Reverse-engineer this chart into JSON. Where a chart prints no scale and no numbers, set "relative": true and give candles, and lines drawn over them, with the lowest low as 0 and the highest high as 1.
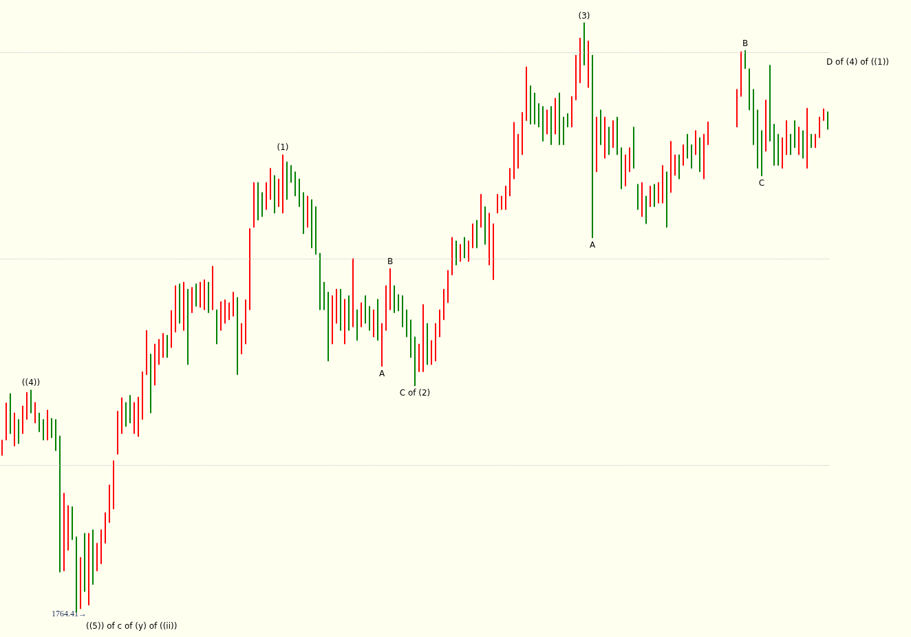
{
  "chart_data": {
    "type": "candlestick",
    "relative": true,
    "grid": false,
    "categories": [
      null,
      null,
      null,
      null,
      null,
      null,
      null,
      null,
      null,
      null,
      null,
      null,
      null,
      null,
      null,
      null,
      null,
      null,
      null,
      null,
      null,
      null,
      null,
      null,
      null,
      null,
      null,
      null,
      null,
      null,
      null,
      null,
      null,
      null,
      null,
      null,
      null,
      null,
      null,
      null,
      null,
      null,
      null,
      null,
      null,
      null,
      null,
      null,
      null,
      null,
      null,
      null,
      null,
      null,
      null,
      null,
      null,
      null,
      null,
      null,
      null,
      null,
      null,
      null,
      null,
      null,
      null,
      null,
      null,
      null,
      null,
      null,
      null,
      null,
      null,
      null,
      null,
      null,
      null,
      null,
      null,
      null,
      null,
      null,
      null,
      null,
      null,
      null,
      null,
      null,
      null,
      null,
      null,
      null,
      null,
      null,
      null,
      null,
      null,
      null,
      null,
      null,
      null,
      null,
      null,
      null,
      null,
      null,
      null,
      null,
      null,
      null,
      null,
      null,
      null,
      null,
      null,
      null,
      null,
      null,
      null,
      null,
      null,
      null,
      null,
      null,
      null,
      null,
      null,
      null,
      null,
      null,
      null,
      null,
      null,
      null,
      null,
      null,
      null,
      null,
      null,
      null,
      null,
      null,
      null,
      null,
      null,
      null,
      null,
      null,
      null,
      null,
      null,
      null,
      null,
      null,
      null,
      null,
      null,
      null,
      null,
      null,
      null,
      null,
      null,
      null,
      null,
      null,
      null,
      null,
      null,
      null,
      null,
      null,
      null,
      null,
      null,
      null,
      null,
      null,
      null,
      null,
      null,
      null,
      null,
      null,
      null,
      null,
      null,
      null,
      null,
      null,
      null,
      null,
      null,
      null,
      null,
      null,
      null,
      null,
      null
    ],
    "ohlc": [
      [
        0.266,
        0.292,
        0.266,
        0.292
      ],
      [
        0.292,
        0.355,
        0.292,
        0.355
      ],
      [
        0.371,
        0.371,
        0.303,
        0.303
      ],
      [
        0.282,
        0.338,
        0.282,
        0.338
      ],
      [
        0.327,
        0.327,
        0.286,
        0.286
      ],
      [
        0.303,
        0.35,
        0.303,
        0.35
      ],
      [
        0.327,
        0.373,
        0.327,
        0.373
      ],
      [
        0.377,
        0.377,
        0.338,
        0.338
      ],
      [
        0.321,
        0.356,
        0.321,
        0.356
      ],
      [
        0.338,
        0.338,
        0.306,
        0.306
      ],
      [
        0.327,
        0.327,
        0.292,
        0.292
      ],
      [
        0.292,
        0.343,
        0.292,
        0.343
      ],
      [
        0.329,
        0.329,
        0.296,
        0.296
      ],
      [
        0.327,
        0.327,
        0.274,
        0.274
      ],
      [
        0.299,
        0.299,
        0.068,
        0.068
      ],
      [
        0.07,
        0.202,
        0.07,
        0.202
      ],
      [
        0.105,
        0.181,
        0.105,
        0.181
      ],
      [
        0.179,
        0.179,
        0.123,
        0.123
      ],
      [
        0.128,
        0.128,
        0,
        0
      ],
      [
        0.006,
        0.093,
        0.006,
        0.093
      ],
      [
        0.134,
        0.134,
        0.035,
        0.035
      ],
      [
        0.012,
        0.134,
        0.012,
        0.134
      ],
      [
        0.14,
        0.14,
        0.047,
        0.047
      ],
      [
        0.07,
        0.117,
        0.07,
        0.117
      ],
      [
        0.082,
        0.14,
        0.082,
        0.14
      ],
      [
        0.117,
        0.169,
        0.117,
        0.169
      ],
      [
        0.152,
        0.216,
        0.152,
        0.216
      ],
      [
        0.175,
        0.257,
        0.175,
        0.257
      ],
      [
        0.268,
        0.341,
        0.268,
        0.341
      ],
      [
        0.303,
        0.364,
        0.303,
        0.364
      ],
      [
        0.356,
        0.356,
        0.315,
        0.315
      ],
      [
        0.368,
        0.368,
        0.321,
        0.321
      ],
      [
        0.303,
        0.356,
        0.303,
        0.356
      ],
      [
        0.298,
        0.365,
        0.298,
        0.365
      ],
      [
        0.327,
        0.408,
        0.327,
        0.408
      ],
      [
        0.403,
        0.478,
        0.403,
        0.478
      ],
      [
        0.438,
        0.438,
        0.338,
        0.338
      ],
      [
        0.385,
        0.455,
        0.385,
        0.455
      ],
      [
        0.42,
        0.463,
        0.42,
        0.463
      ],
      [
        0.432,
        0.473,
        0.432,
        0.473
      ],
      [
        0.47,
        0.47,
        0.432,
        0.432
      ],
      [
        0.449,
        0.512,
        0.449,
        0.512
      ],
      [
        0.475,
        0.554,
        0.475,
        0.554
      ],
      [
        0.557,
        0.557,
        0.49,
        0.49
      ],
      [
        0.478,
        0.56,
        0.478,
        0.56
      ],
      [
        0.548,
        0.548,
        0.42,
        0.42
      ],
      [
        0.508,
        0.551,
        0.508,
        0.551
      ],
      [
        0.557,
        0.557,
        0.519,
        0.519
      ],
      [
        0.517,
        0.56,
        0.517,
        0.56
      ],
      [
        0.513,
        0.564,
        0.513,
        0.564
      ],
      [
        0.56,
        0.56,
        0.508,
        0.508
      ],
      [
        0.513,
        0.587,
        0.513,
        0.587
      ],
      [
        0.513,
        0.513,
        0.455,
        0.455
      ],
      [
        0.478,
        0.527,
        0.478,
        0.527
      ],
      [
        0.49,
        0.53,
        0.49,
        0.53
      ],
      [
        0.496,
        0.525,
        0.496,
        0.525
      ],
      [
        0.502,
        0.543,
        0.502,
        0.543
      ],
      [
        0.534,
        0.534,
        0.403,
        0.403
      ],
      [
        0.438,
        0.49,
        0.438,
        0.49
      ],
      [
        0.455,
        0.53,
        0.455,
        0.53
      ],
      [
        0.513,
        0.651,
        0.513,
        0.651
      ],
      [
        0.653,
        0.729,
        0.653,
        0.729
      ],
      [
        0.729,
        0.729,
        0.665,
        0.665
      ],
      [
        0.712,
        0.712,
        0.671,
        0.671
      ],
      [
        0.683,
        0.729,
        0.683,
        0.729
      ],
      [
        0.7,
        0.753,
        0.7,
        0.753
      ],
      [
        0.741,
        0.741,
        0.677,
        0.677
      ],
      [
        0.688,
        0.735,
        0.688,
        0.735
      ],
      [
        0.677,
        0.776,
        0.677,
        0.776
      ],
      [
        0.764,
        0.764,
        0.7,
        0.7
      ],
      [
        0.758,
        0.758,
        0.729,
        0.729
      ],
      [
        0.747,
        0.747,
        0.706,
        0.706
      ],
      [
        0.735,
        0.735,
        0.688,
        0.688
      ],
      [
        0.712,
        0.712,
        0.642,
        0.642
      ],
      [
        0.653,
        0.706,
        0.653,
        0.706
      ],
      [
        0.7,
        0.7,
        0.618,
        0.618
      ],
      [
        0.688,
        0.688,
        0.607,
        0.607
      ],
      [
        0.609,
        0.609,
        0.513,
        0.513
      ],
      [
        0.56,
        0.56,
        0.513,
        0.513
      ],
      [
        0.543,
        0.543,
        0.426,
        0.426
      ],
      [
        0.455,
        0.537,
        0.455,
        0.537
      ],
      [
        0.49,
        0.548,
        0.49,
        0.548
      ],
      [
        0.548,
        0.548,
        0.478,
        0.478
      ],
      [
        0.455,
        0.531,
        0.455,
        0.531
      ],
      [
        0.537,
        0.537,
        0.478,
        0.478
      ],
      [
        0.484,
        0.6,
        0.484,
        0.6
      ],
      [
        0.513,
        0.513,
        0.461,
        0.461
      ],
      [
        0.484,
        0.525,
        0.484,
        0.525
      ],
      [
        0.537,
        0.537,
        0.49,
        0.49
      ],
      [
        0.519,
        0.519,
        0.478,
        0.478
      ],
      [
        0.467,
        0.513,
        0.467,
        0.513
      ],
      [
        0.531,
        0.531,
        0.461,
        0.461
      ],
      [
        0.417,
        0.49,
        0.417,
        0.49
      ],
      [
        0.478,
        0.554,
        0.478,
        0.554
      ],
      [
        0.513,
        0.583,
        0.513,
        0.583
      ],
      [
        0.554,
        0.554,
        0.508,
        0.508
      ],
      [
        0.539,
        0.539,
        0.511,
        0.511
      ],
      [
        0.537,
        0.537,
        0.484,
        0.484
      ],
      [
        0.513,
        0.513,
        0.467,
        0.467
      ],
      [
        0.496,
        0.496,
        0.432,
        0.432
      ],
      [
        0.467,
        0.467,
        0.384,
        0.384
      ],
      [
        0.408,
        0.455,
        0.408,
        0.455
      ],
      [
        0.408,
        0.522,
        0.408,
        0.522
      ],
      [
        0.49,
        0.49,
        0.42,
        0.42
      ],
      [
        0.42,
        0.461,
        0.42,
        0.461
      ],
      [
        0.426,
        0.49,
        0.426,
        0.49
      ],
      [
        0.467,
        0.513,
        0.467,
        0.513
      ],
      [
        0.496,
        0.548,
        0.496,
        0.548
      ],
      [
        0.525,
        0.58,
        0.525,
        0.58
      ],
      [
        0.572,
        0.636,
        0.572,
        0.636
      ],
      [
        0.63,
        0.63,
        0.589,
        0.589
      ],
      [
        0.595,
        0.624,
        0.595,
        0.624
      ],
      [
        0.636,
        0.636,
        0.601,
        0.601
      ],
      [
        0.595,
        0.63,
        0.595,
        0.63
      ],
      [
        0.618,
        0.659,
        0.618,
        0.659
      ],
      [
        0.665,
        0.665,
        0.618,
        0.618
      ],
      [
        0.653,
        0.709,
        0.653,
        0.709
      ],
      [
        0.688,
        0.688,
        0.624,
        0.624
      ],
      [
        0.589,
        0.677,
        0.589,
        0.677
      ],
      [
        0.564,
        0.659,
        0.564,
        0.659
      ],
      [
        0.677,
        0.709,
        0.677,
        0.709
      ],
      [
        0.683,
        0.706,
        0.683,
        0.706
      ],
      [
        0.683,
        0.723,
        0.683,
        0.723
      ],
      [
        0.706,
        0.753,
        0.706,
        0.753
      ],
      [
        0.735,
        0.831,
        0.735,
        0.831
      ],
      [
        0.753,
        0.811,
        0.753,
        0.811
      ],
      [
        0.776,
        0.848,
        0.776,
        0.848
      ],
      [
        0.834,
        0.925,
        0.834,
        0.925
      ],
      [
        0.893,
        0.893,
        0.828,
        0.828
      ],
      [
        0.881,
        0.881,
        0.828,
        0.828
      ],
      [
        0.863,
        0.863,
        0.823,
        0.823
      ],
      [
        0.858,
        0.858,
        0.799,
        0.799
      ],
      [
        0.811,
        0.852,
        0.811,
        0.852
      ],
      [
        0.858,
        0.858,
        0.793,
        0.793
      ],
      [
        0.811,
        0.872,
        0.811,
        0.872
      ],
      [
        0.881,
        0.881,
        0.793,
        0.793
      ],
      [
        0.84,
        0.84,
        0.793,
        0.793
      ],
      [
        0.846,
        0.846,
        0.823,
        0.823
      ],
      [
        0.823,
        0.875,
        0.823,
        0.875
      ],
      [
        0.869,
        0.945,
        0.869,
        0.945
      ],
      [
        0.898,
        0.974,
        0.898,
        0.974
      ],
      [
        1,
        1,
        0.928,
        0.928
      ],
      [
        0.89,
        0.969,
        0.89,
        0.969
      ],
      [
        0.945,
        0.945,
        0.635,
        0.635
      ],
      [
        0.747,
        0.84,
        0.747,
        0.84
      ],
      [
        0.852,
        0.852,
        0.793,
        0.793
      ],
      [
        0.77,
        0.84,
        0.77,
        0.84
      ],
      [
        0.823,
        0.823,
        0.776,
        0.776
      ],
      [
        0.788,
        0.834,
        0.788,
        0.834
      ],
      [
        0.84,
        0.84,
        0.776,
        0.776
      ],
      [
        0.788,
        0.788,
        0.718,
        0.718
      ],
      [
        0.723,
        0.776,
        0.723,
        0.776
      ],
      [
        0.747,
        0.788,
        0.747,
        0.788
      ],
      [
        0.823,
        0.823,
        0.753,
        0.753
      ],
      [
        0.726,
        0.726,
        0.683,
        0.683
      ],
      [
        0.671,
        0.729,
        0.671,
        0.729
      ],
      [
        0.706,
        0.706,
        0.659,
        0.659
      ],
      [
        0.688,
        0.723,
        0.688,
        0.723
      ],
      [
        0.726,
        0.726,
        0.688,
        0.688
      ],
      [
        0.694,
        0.729,
        0.694,
        0.729
      ],
      [
        0.694,
        0.758,
        0.694,
        0.758
      ],
      [
        0.747,
        0.747,
        0.653,
        0.653
      ],
      [
        0.712,
        0.799,
        0.712,
        0.799
      ],
      [
        0.741,
        0.776,
        0.741,
        0.776
      ],
      [
        0.776,
        0.776,
        0.735,
        0.735
      ],
      [
        0.758,
        0.793,
        0.758,
        0.793
      ],
      [
        0.811,
        0.811,
        0.77,
        0.77
      ],
      [
        0.793,
        0.793,
        0.753,
        0.753
      ],
      [
        0.776,
        0.817,
        0.776,
        0.817
      ],
      [
        0.805,
        0.805,
        0.747,
        0.747
      ],
      [
        0.735,
        0.811,
        0.735,
        0.811
      ],
      [
        0.793,
        0.832,
        0.793,
        0.832
      ],
      null,
      null,
      null,
      null,
      null,
      null,
      [
        0.823,
        0.887,
        0.823,
        0.887
      ],
      [
        0.875,
        0.951,
        0.875,
        0.951
      ],
      [
        0.953,
        0.953,
        0.922,
        0.922
      ],
      [
        0.922,
        0.922,
        0.852,
        0.852
      ],
      [
        0.887,
        0.887,
        0.793,
        0.793
      ],
      [
        0.852,
        0.852,
        0.753,
        0.753
      ],
      [
        0.817,
        0.817,
        0.74,
        0.74
      ],
      [
        0.782,
        0.869,
        0.782,
        0.869
      ],
      [
        0.928,
        0.928,
        0.799,
        0.799
      ],
      [
        0.828,
        0.828,
        0.758,
        0.758
      ],
      [
        0.811,
        0.811,
        0.758,
        0.758
      ],
      [
        0.753,
        0.805,
        0.753,
        0.805
      ],
      [
        0.776,
        0.834,
        0.776,
        0.834
      ],
      [
        0.811,
        0.811,
        0.776,
        0.776
      ],
      [
        0.834,
        0.834,
        0.788,
        0.788
      ],
      [
        0.776,
        0.823,
        0.776,
        0.823
      ],
      [
        0.817,
        0.817,
        0.77,
        0.77
      ],
      [
        0.753,
        0.855,
        0.753,
        0.855
      ],
      [
        0.811,
        0.811,
        0.788,
        0.788
      ],
      [
        0.788,
        0.811,
        0.788,
        0.811
      ],
      [
        0.805,
        0.84,
        0.805,
        0.84
      ],
      [
        0.834,
        0.854,
        0.834,
        0.854
      ],
      [
        0.849,
        0.849,
        0.819,
        0.819
      ]
    ],
    "colors": [
      "#ff0000",
      "#ff0000",
      "#008000",
      "#ff0000",
      "#008000",
      "#ff0000",
      "#ff0000",
      "#008000",
      "#ff0000",
      "#008000",
      "#008000",
      "#ff0000",
      "#008000",
      "#008000",
      "#008000",
      "#ff0000",
      "#ff0000",
      "#008000",
      "#008000",
      "#ff0000",
      "#008000",
      "#ff0000",
      "#008000",
      "#ff0000",
      "#ff0000",
      "#ff0000",
      "#ff0000",
      "#ff0000",
      "#ff0000",
      "#ff0000",
      "#008000",
      "#008000",
      "#ff0000",
      "#ff0000",
      "#ff0000",
      "#ff0000",
      "#008000",
      "#ff0000",
      "#ff0000",
      "#ff0000",
      "#008000",
      "#ff0000",
      "#ff0000",
      "#008000",
      "#ff0000",
      "#008000",
      "#ff0000",
      "#008000",
      "#ff0000",
      "#ff0000",
      "#008000",
      "#ff0000",
      "#008000",
      "#ff0000",
      "#ff0000",
      "#ff0000",
      "#ff0000",
      "#008000",
      "#ff0000",
      "#ff0000",
      "#ff0000",
      "#ff0000",
      "#008000",
      "#008000",
      "#ff0000",
      "#ff0000",
      "#008000",
      "#ff0000",
      "#ff0000",
      "#008000",
      "#008000",
      "#008000",
      "#008000",
      "#008000",
      "#ff0000",
      "#008000",
      "#008000",
      "#008000",
      "#008000",
      "#008000",
      "#ff0000",
      "#ff0000",
      "#008000",
      "#ff0000",
      "#008000",
      "#ff0000",
      "#008000",
      "#ff0000",
      "#008000",
      "#008000",
      "#ff0000",
      "#008000",
      "#ff0000",
      "#ff0000",
      "#ff0000",
      "#008000",
      "#008000",
      "#008000",
      "#008000",
      "#008000",
      "#008000",
      "#ff0000",
      "#ff0000",
      "#008000",
      "#ff0000",
      "#ff0000",
      "#ff0000",
      "#ff0000",
      "#ff0000",
      "#ff0000",
      "#008000",
      "#ff0000",
      "#008000",
      "#ff0000",
      "#ff0000",
      "#008000",
      "#ff0000",
      "#008000",
      "#ff0000",
      "#ff0000",
      "#ff0000",
      "#ff0000",
      "#ff0000",
      "#ff0000",
      "#ff0000",
      "#ff0000",
      "#ff0000",
      "#ff0000",
      "#008000",
      "#008000",
      "#008000",
      "#008000",
      "#ff0000",
      "#008000",
      "#ff0000",
      "#008000",
      "#008000",
      "#008000",
      "#ff0000",
      "#ff0000",
      "#ff0000",
      "#008000",
      "#ff0000",
      "#008000",
      "#ff0000",
      "#008000",
      "#ff0000",
      "#008000",
      "#ff0000",
      "#008000",
      "#008000",
      "#ff0000",
      "#ff0000",
      "#008000",
      "#008000",
      "#ff0000",
      "#008000",
      "#ff0000",
      "#008000",
      "#ff0000",
      "#ff0000",
      "#008000",
      "#ff0000",
      "#ff0000",
      "#008000",
      "#ff0000",
      "#008000",
      "#008000",
      "#ff0000",
      "#008000",
      "#ff0000",
      "#ff0000",
      null,
      null,
      null,
      null,
      null,
      null,
      "#ff0000",
      "#ff0000",
      "#008000",
      "#008000",
      "#008000",
      "#008000",
      "#008000",
      "#ff0000",
      "#008000",
      "#008000",
      "#008000",
      "#ff0000",
      "#ff0000",
      "#008000",
      "#008000",
      "#ff0000",
      "#008000",
      "#ff0000",
      "#008000",
      "#ff0000",
      "#ff0000",
      "#ff0000",
      "#008000"
    ],
    "ref_lines": [
      {
        "axis": "y",
        "value": 0.951,
        "color": "#c0c0c0",
        "line_style": "dotted"
      },
      {
        "axis": "y",
        "value": 0.6,
        "color": "#c0c0c0",
        "line_style": "dotted"
      },
      {
        "axis": "y",
        "value": 0.249,
        "color": "#c0c0c0",
        "line_style": "dotted"
      }
    ],
    "annotations": [
      {
        "text": "((4))",
        "y": 0.377
      },
      "((5)) of c of (y) of ((ii))",
      "1764.41→",
      {
        "text": "(1)",
        "y": 0.776
      },
      {
        "text": "A",
        "y": 0.417
      },
      {
        "text": "B",
        "y": 0.583
      },
      {
        "text": "C of (2)",
        "y": 0.384
      },
      {
        "text": "(3)",
        "y": 1
      },
      {
        "text": "A",
        "y": 0.635
      },
      {
        "text": "B",
        "y": 0.953
      },
      {
        "text": "C",
        "y": 0.74
      },
      "D of (4) of ((1))"
    ]
  }
}
